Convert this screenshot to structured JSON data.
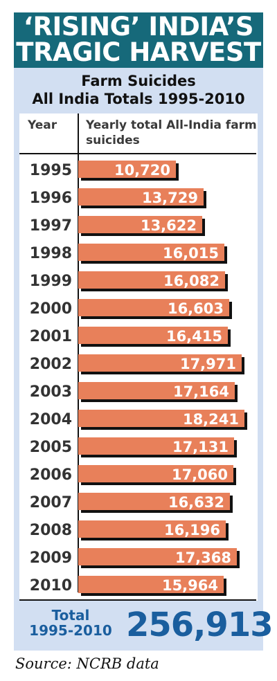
{
  "header": {
    "title_line1": "‘RISING’ INDIA’S",
    "title_line2": "TRAGIC HARVEST"
  },
  "subheader": {
    "line1": "Farm Suicides",
    "line2": "All India Totals 1995-2010"
  },
  "chart_data": {
    "type": "bar",
    "orientation": "horizontal",
    "column_header_category": "Year",
    "column_header_value": "Yearly total All-India farm suicides",
    "categories": [
      "1995",
      "1996",
      "1997",
      "1998",
      "1999",
      "2000",
      "2001",
      "2002",
      "2003",
      "2004",
      "2005",
      "2006",
      "2007",
      "2008",
      "2009",
      "2010"
    ],
    "values": [
      10720,
      13729,
      13622,
      16015,
      16082,
      16603,
      16415,
      17971,
      17164,
      18241,
      17131,
      17060,
      16632,
      16196,
      17368,
      15964
    ],
    "value_labels": [
      "10,720",
      "13,729",
      "13,622",
      "16,015",
      "16,082",
      "16,603",
      "16,415",
      "17,971",
      "17,164",
      "18,241",
      "17,131",
      "17,060",
      "16,632",
      "16,196",
      "17,368",
      "15,964"
    ],
    "xlim": [
      0,
      18241
    ],
    "bar_color": "#e8805a",
    "bar_shadow_color": "#111111",
    "label_color": "#ffffff"
  },
  "total": {
    "label_line1": "Total",
    "label_line2": "1995-2010",
    "value": "256,913"
  },
  "footer": {
    "source": "Source: NCRB data"
  },
  "colors": {
    "title_band": "#16697a",
    "panel": "#d2dff2",
    "total_text": "#1a5e9e"
  }
}
